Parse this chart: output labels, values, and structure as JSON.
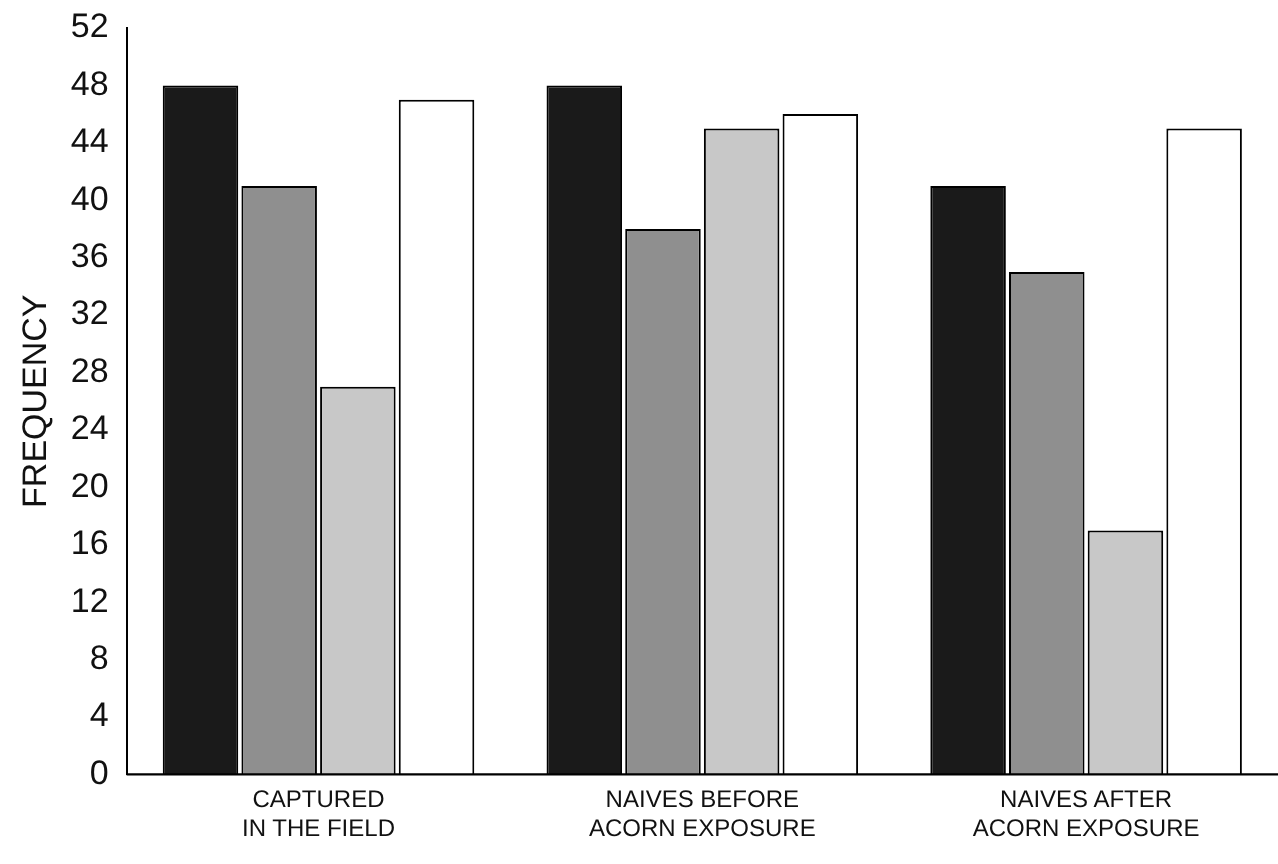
{
  "chart_data": {
    "type": "bar",
    "ylabel": "FREQUENCY",
    "categories": [
      "CAPTURED\nIN THE FIELD",
      "NAIVES BEFORE\nACORN EXPOSURE",
      "NAIVES AFTER\nACORN EXPOSURE"
    ],
    "series": [
      {
        "color": "#1a1a1a",
        "values": [
          48,
          48,
          41
        ]
      },
      {
        "color": "#8f8f8f",
        "values": [
          41,
          38,
          35
        ]
      },
      {
        "color": "#c8c8c8",
        "values": [
          27,
          45,
          17
        ]
      },
      {
        "color": "#ffffff",
        "values": [
          47,
          46,
          45
        ]
      }
    ],
    "ylim": [
      0,
      52
    ],
    "yticks": [
      0,
      4,
      8,
      12,
      16,
      20,
      24,
      28,
      32,
      36,
      40,
      44,
      48,
      52
    ],
    "grid": false,
    "legend": false
  }
}
